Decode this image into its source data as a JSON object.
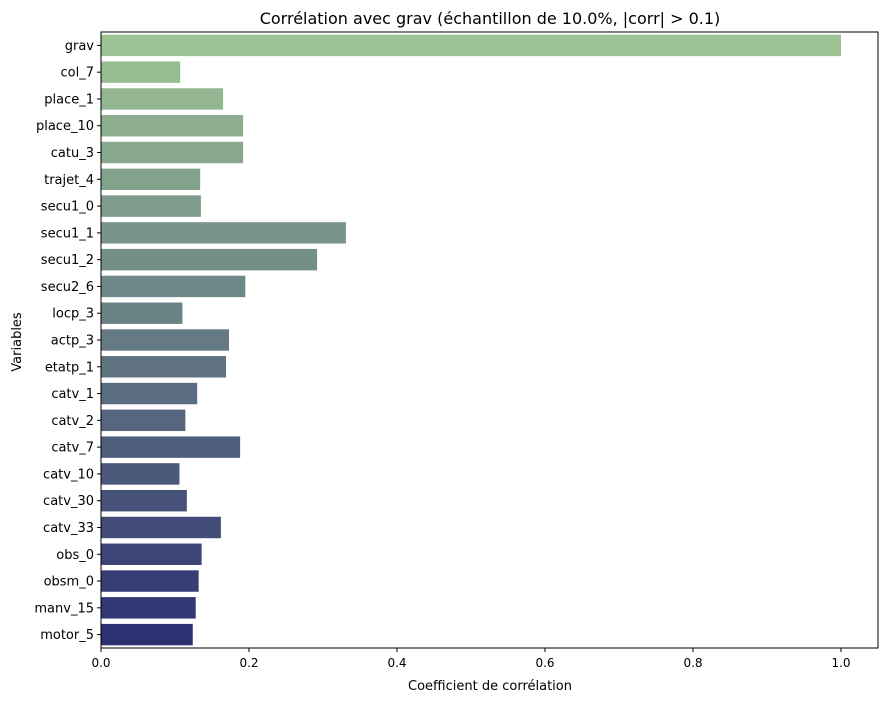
{
  "chart_data": {
    "type": "bar",
    "orientation": "horizontal",
    "title": "Corrélation avec grav (échantillon de 10.0%, |corr| > 0.1)",
    "xlabel": "Coefficient de corrélation",
    "ylabel": "Variables",
    "xlim": [
      0,
      1.05
    ],
    "xticks": [
      0.0,
      0.2,
      0.4,
      0.6,
      0.8,
      1.0
    ],
    "xtick_labels": [
      "0.0",
      "0.2",
      "0.4",
      "0.6",
      "0.8",
      "1.0"
    ],
    "grid": false,
    "colormap": "crest",
    "color_start": "#9dc394",
    "color_end": "#2c3172",
    "categories": [
      "grav",
      "col_7",
      "place_1",
      "place_10",
      "catu_3",
      "trajet_4",
      "secu1_0",
      "secu1_1",
      "secu1_2",
      "secu2_6",
      "locp_3",
      "actp_3",
      "etatp_1",
      "catv_1",
      "catv_2",
      "catv_7",
      "catv_10",
      "catv_30",
      "catv_33",
      "obs_0",
      "obsm_0",
      "manv_15",
      "motor_5"
    ],
    "values": [
      1.0,
      0.107,
      0.165,
      0.192,
      0.192,
      0.134,
      0.135,
      0.331,
      0.292,
      0.195,
      0.11,
      0.173,
      0.169,
      0.13,
      0.114,
      0.188,
      0.106,
      0.116,
      0.162,
      0.136,
      0.132,
      0.128,
      0.124
    ]
  }
}
